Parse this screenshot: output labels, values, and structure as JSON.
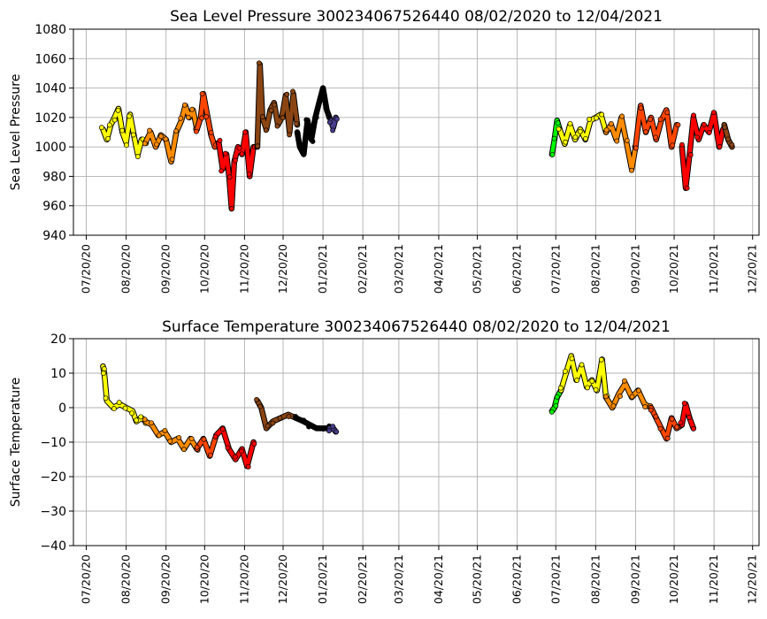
{
  "chart_data": [
    {
      "type": "scatter",
      "title": "Sea Level Pressure 300234067526440  08/02/2020 to 12/04/2021",
      "ylabel": "Sea Level Pressure",
      "xlabel": "",
      "ylim": [
        940,
        1080
      ],
      "yticks": [
        940,
        960,
        980,
        1000,
        1020,
        1040,
        1060,
        1080
      ],
      "x_range": [
        "2020-07-10",
        "2021-12-25"
      ],
      "xticks": [
        "07/20/20",
        "08/20/20",
        "09/20/20",
        "10/20/20",
        "11/20/20",
        "12/20/20",
        "01/20/21",
        "02/20/21",
        "03/20/21",
        "04/20/21",
        "05/20/21",
        "06/20/21",
        "07/20/21",
        "08/20/21",
        "09/20/21",
        "10/20/21",
        "11/20/21",
        "12/20/21"
      ],
      "grid": true,
      "series": [
        {
          "color": "#ffff00",
          "points": [
            [
              "2020-08-02",
              1012
            ],
            [
              "2020-08-05",
              1005
            ],
            [
              "2020-08-08",
              1015
            ],
            [
              "2020-08-11",
              1020
            ],
            [
              "2020-08-14",
              1026
            ],
            [
              "2020-08-17",
              1010
            ],
            [
              "2020-08-20",
              1003
            ],
            [
              "2020-08-23",
              1022
            ],
            [
              "2020-08-26",
              1008
            ],
            [
              "2020-08-29",
              995
            ],
            [
              "2020-09-01",
              1005
            ],
            [
              "2020-09-04",
              1003
            ]
          ]
        },
        {
          "color": "#ff8c00",
          "points": [
            [
              "2020-09-04",
              1003
            ],
            [
              "2020-09-08",
              1010
            ],
            [
              "2020-09-12",
              1000
            ],
            [
              "2020-09-16",
              1008
            ],
            [
              "2020-09-20",
              1005
            ],
            [
              "2020-09-24",
              990
            ],
            [
              "2020-09-28",
              1010
            ],
            [
              "2020-10-02",
              1018
            ],
            [
              "2020-10-05",
              1028
            ],
            [
              "2020-10-08",
              1020
            ],
            [
              "2020-10-11",
              1025
            ],
            [
              "2020-10-14",
              1012
            ]
          ]
        },
        {
          "color": "#ff4500",
          "points": [
            [
              "2020-10-14",
              1012
            ],
            [
              "2020-10-17",
              1020
            ],
            [
              "2020-10-19",
              1036
            ],
            [
              "2020-10-22",
              1022
            ],
            [
              "2020-10-25",
              1008
            ],
            [
              "2020-10-28",
              1000
            ],
            [
              "2020-10-31",
              1003
            ]
          ]
        },
        {
          "color": "#ff0000",
          "points": [
            [
              "2020-10-31",
              1003
            ],
            [
              "2020-11-03",
              985
            ],
            [
              "2020-11-06",
              995
            ],
            [
              "2020-11-08",
              980
            ],
            [
              "2020-11-10",
              958
            ],
            [
              "2020-11-12",
              990
            ],
            [
              "2020-11-15",
              1000
            ],
            [
              "2020-11-18",
              995
            ],
            [
              "2020-11-21",
              1010
            ],
            [
              "2020-11-24",
              980
            ],
            [
              "2020-11-27",
              1000
            ]
          ]
        },
        {
          "color": "#8b4513",
          "points": [
            [
              "2020-11-30",
              1000
            ],
            [
              "2020-12-02",
              1056
            ],
            [
              "2020-12-04",
              1020
            ],
            [
              "2020-12-07",
              1012
            ],
            [
              "2020-12-10",
              1025
            ],
            [
              "2020-12-13",
              1030
            ],
            [
              "2020-12-16",
              1015
            ],
            [
              "2020-12-19",
              1020
            ],
            [
              "2020-12-22",
              1035
            ],
            [
              "2020-12-25",
              1010
            ],
            [
              "2020-12-28",
              1036
            ],
            [
              "2020-12-31",
              1015
            ]
          ]
        },
        {
          "color": "#000000",
          "points": [
            [
              "2020-12-31",
              1010
            ],
            [
              "2021-01-02",
              1000
            ],
            [
              "2021-01-05",
              995
            ],
            [
              "2021-01-08",
              1018
            ],
            [
              "2021-01-11",
              1005
            ],
            [
              "2021-01-14",
              1020
            ],
            [
              "2021-01-17",
              1030
            ],
            [
              "2021-01-20",
              1040
            ],
            [
              "2021-01-23",
              1025
            ],
            [
              "2021-01-25",
              1020
            ]
          ]
        },
        {
          "color": "#483d8b",
          "points": [
            [
              "2021-01-26",
              1018
            ],
            [
              "2021-01-28",
              1013
            ],
            [
              "2021-01-30",
              1020
            ]
          ]
        },
        {
          "color": "#00ff00",
          "points": [
            [
              "2021-07-17",
              995
            ],
            [
              "2021-07-19",
              1005
            ],
            [
              "2021-07-21",
              1018
            ],
            [
              "2021-07-23",
              1012
            ]
          ]
        },
        {
          "color": "#ffff00",
          "points": [
            [
              "2021-07-23",
              1012
            ],
            [
              "2021-07-27",
              1002
            ],
            [
              "2021-07-31",
              1015
            ],
            [
              "2021-08-04",
              1005
            ],
            [
              "2021-08-08",
              1012
            ],
            [
              "2021-08-12",
              1005
            ],
            [
              "2021-08-16",
              1018
            ],
            [
              "2021-08-20",
              1020
            ],
            [
              "2021-08-24",
              1022
            ],
            [
              "2021-08-28",
              1010
            ]
          ]
        },
        {
          "color": "#ff8c00",
          "points": [
            [
              "2021-08-28",
              1010
            ],
            [
              "2021-09-01",
              1015
            ],
            [
              "2021-09-05",
              1005
            ],
            [
              "2021-09-09",
              1020
            ],
            [
              "2021-09-13",
              1003
            ],
            [
              "2021-09-17",
              985
            ],
            [
              "2021-09-20",
              1000
            ]
          ]
        },
        {
          "color": "#ff4500",
          "points": [
            [
              "2021-09-20",
              1000
            ],
            [
              "2021-09-24",
              1028
            ],
            [
              "2021-09-28",
              1010
            ],
            [
              "2021-10-02",
              1020
            ],
            [
              "2021-10-06",
              1005
            ],
            [
              "2021-10-10",
              1018
            ],
            [
              "2021-10-14",
              1025
            ],
            [
              "2021-10-18",
              1000
            ],
            [
              "2021-10-22",
              1015
            ]
          ]
        },
        {
          "color": "#ff0000",
          "points": [
            [
              "2021-10-26",
              1000
            ],
            [
              "2021-10-29",
              972
            ],
            [
              "2021-11-01",
              995
            ],
            [
              "2021-11-04",
              1020
            ],
            [
              "2021-11-08",
              1005
            ],
            [
              "2021-11-12",
              1015
            ],
            [
              "2021-11-16",
              1010
            ],
            [
              "2021-11-20",
              1023
            ],
            [
              "2021-11-24",
              1000
            ],
            [
              "2021-11-27",
              1012
            ]
          ]
        },
        {
          "color": "#8b4513",
          "points": [
            [
              "2021-11-28",
              1015
            ],
            [
              "2021-12-01",
              1005
            ],
            [
              "2021-12-04",
              1000
            ]
          ]
        }
      ]
    },
    {
      "type": "scatter",
      "title": "Surface Temperature 300234067526440  08/02/2020 to 12/04/2021",
      "ylabel": "Surface Temperature",
      "xlabel": "",
      "ylim": [
        -40,
        20
      ],
      "yticks": [
        -40,
        -30,
        -20,
        -10,
        0,
        10,
        20
      ],
      "x_range": [
        "2020-07-10",
        "2021-12-25"
      ],
      "xticks": [
        "07/20/20",
        "08/20/20",
        "09/20/20",
        "10/20/20",
        "11/20/20",
        "12/20/20",
        "01/20/21",
        "02/20/21",
        "03/20/21",
        "04/20/21",
        "05/20/21",
        "06/20/21",
        "07/20/21",
        "08/20/21",
        "09/20/21",
        "10/20/21",
        "11/20/21",
        "12/20/21"
      ],
      "grid": true,
      "series": [
        {
          "color": "#ffff00",
          "points": [
            [
              "2020-08-02",
              12
            ],
            [
              "2020-08-03",
              10
            ],
            [
              "2020-08-05",
              2
            ],
            [
              "2020-08-10",
              0
            ],
            [
              "2020-08-15",
              1
            ],
            [
              "2020-08-20",
              0
            ],
            [
              "2020-08-25",
              -1
            ],
            [
              "2020-08-28",
              -4
            ],
            [
              "2020-09-01",
              -3
            ],
            [
              "2020-09-04",
              -4
            ]
          ]
        },
        {
          "color": "#ff8c00",
          "points": [
            [
              "2020-09-04",
              -4
            ],
            [
              "2020-09-09",
              -5
            ],
            [
              "2020-09-14",
              -8
            ],
            [
              "2020-09-19",
              -7
            ],
            [
              "2020-09-24",
              -10
            ],
            [
              "2020-09-29",
              -9
            ],
            [
              "2020-10-04",
              -12
            ],
            [
              "2020-10-09",
              -9
            ],
            [
              "2020-10-14",
              -12
            ]
          ]
        },
        {
          "color": "#ff4500",
          "points": [
            [
              "2020-10-14",
              -12
            ],
            [
              "2020-10-19",
              -9
            ],
            [
              "2020-10-24",
              -14
            ],
            [
              "2020-10-29",
              -8
            ]
          ]
        },
        {
          "color": "#ff0000",
          "points": [
            [
              "2020-10-29",
              -8
            ],
            [
              "2020-11-03",
              -6
            ],
            [
              "2020-11-08",
              -12
            ],
            [
              "2020-11-13",
              -15
            ],
            [
              "2020-11-18",
              -12
            ],
            [
              "2020-11-22",
              -17
            ],
            [
              "2020-11-27",
              -10
            ]
          ]
        },
        {
          "color": "#8b4513",
          "points": [
            [
              "2020-11-30",
              2
            ],
            [
              "2020-12-03",
              0
            ],
            [
              "2020-12-07",
              -6
            ],
            [
              "2020-12-12",
              -4
            ],
            [
              "2020-12-18",
              -3
            ],
            [
              "2020-12-24",
              -2
            ],
            [
              "2020-12-30",
              -3
            ]
          ]
        },
        {
          "color": "#000000",
          "points": [
            [
              "2020-12-30",
              -3
            ],
            [
              "2021-01-05",
              -4
            ],
            [
              "2021-01-10",
              -5
            ],
            [
              "2021-01-15",
              -6
            ],
            [
              "2021-01-20",
              -6
            ],
            [
              "2021-01-25",
              -6
            ]
          ]
        },
        {
          "color": "#483d8b",
          "points": [
            [
              "2021-01-25",
              -6
            ],
            [
              "2021-01-28",
              -6
            ],
            [
              "2021-01-30",
              -7
            ]
          ]
        },
        {
          "color": "#00ff00",
          "points": [
            [
              "2021-07-17",
              -1
            ],
            [
              "2021-07-19",
              0
            ],
            [
              "2021-07-21",
              3
            ],
            [
              "2021-07-24",
              5
            ]
          ]
        },
        {
          "color": "#ffff00",
          "points": [
            [
              "2021-07-24",
              5
            ],
            [
              "2021-07-28",
              10
            ],
            [
              "2021-08-01",
              15
            ],
            [
              "2021-08-05",
              8
            ],
            [
              "2021-08-09",
              12
            ],
            [
              "2021-08-13",
              6
            ],
            [
              "2021-08-17",
              8
            ],
            [
              "2021-08-21",
              5
            ],
            [
              "2021-08-25",
              14
            ],
            [
              "2021-08-28",
              3
            ]
          ]
        },
        {
          "color": "#ff8c00",
          "points": [
            [
              "2021-08-28",
              3
            ],
            [
              "2021-09-02",
              0
            ],
            [
              "2021-09-07",
              4
            ],
            [
              "2021-09-12",
              7
            ],
            [
              "2021-09-17",
              3
            ],
            [
              "2021-09-22",
              5
            ],
            [
              "2021-09-27",
              1
            ],
            [
              "2021-10-02",
              0
            ]
          ]
        },
        {
          "color": "#ff4500",
          "points": [
            [
              "2021-10-02",
              0
            ],
            [
              "2021-10-06",
              -3
            ],
            [
              "2021-10-10",
              -6
            ],
            [
              "2021-10-14",
              -9
            ],
            [
              "2021-10-18",
              -3
            ],
            [
              "2021-10-22",
              -6
            ],
            [
              "2021-10-26",
              -5
            ]
          ]
        },
        {
          "color": "#ff0000",
          "points": [
            [
              "2021-10-26",
              -5
            ],
            [
              "2021-10-29",
              1
            ],
            [
              "2021-11-01",
              -3
            ],
            [
              "2021-11-04",
              -6
            ]
          ]
        }
      ]
    }
  ]
}
